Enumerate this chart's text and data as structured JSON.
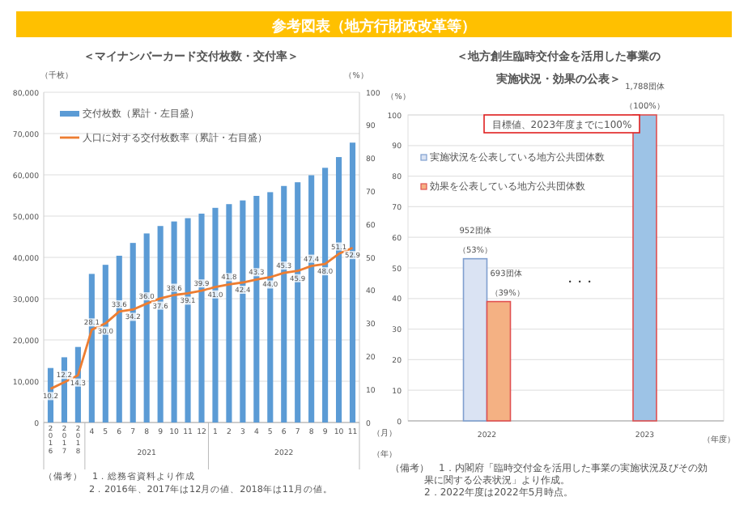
{
  "chart_data": [
    {
      "type": "bar",
      "title": "＜マイナンバーカード交付枚数・交付率＞",
      "xlabel": "（月）",
      "ylabel": "（千枚）",
      "y2label": "（%）",
      "categories": [
        "2016",
        "2017",
        "2018",
        "4",
        "5",
        "6",
        "7",
        "8",
        "9",
        "10",
        "11",
        "12",
        "1",
        "2",
        "3",
        "4",
        "5",
        "6",
        "7",
        "8",
        "9",
        "10",
        "11"
      ],
      "series": [
        {
          "name": "交付枚数（累計・左目盛）",
          "color": "#5b9bd5",
          "values": [
            13200,
            15800,
            18300,
            36000,
            38200,
            40400,
            43500,
            45800,
            47600,
            48700,
            49500,
            50600,
            52000,
            52900,
            53800,
            54900,
            55800,
            57300,
            58200,
            59900,
            61700,
            64300,
            67800
          ]
        },
        {
          "name": "人口に対する交付枚数率（累計・右目盛）",
          "type": "line",
          "axis": "y2",
          "color": "#ed7d31",
          "values": [
            10.2,
            12.2,
            14.3,
            28.1,
            30.0,
            33.6,
            34.2,
            36.0,
            37.6,
            38.6,
            39.1,
            39.9,
            41.0,
            41.8,
            42.4,
            43.3,
            44.0,
            45.3,
            45.9,
            47.4,
            48.0,
            51.1,
            52.9
          ],
          "value_labels": [
            "10.2",
            "12.2",
            "14.3",
            "28.1",
            "30.0",
            "33.6",
            "34.2",
            "36.0",
            "37.6",
            "38.6",
            "39.1",
            "39.9",
            "41.0",
            "41.8",
            "42.4",
            "43.3",
            "44.0",
            "45.3",
            "45.9",
            "47.4",
            "48.0",
            "51.1",
            "52.9"
          ]
        }
      ],
      "ylim": [
        0,
        80000
      ],
      "yticks": [
        0,
        {
          "value": 10000,
          "label": "10,000"
        },
        {
          "value": 20000,
          "label": "20,000"
        },
        {
          "value": 30000,
          "label": "30,000"
        },
        {
          "value": 40000,
          "label": "40,000"
        },
        {
          "value": 50000,
          "label": "50,000"
        },
        {
          "value": 60000,
          "label": "60,000"
        },
        {
          "value": 70000,
          "label": "70,000"
        },
        {
          "value": 80000,
          "label": "80,000"
        }
      ],
      "y2lim": [
        0,
        100
      ],
      "y2ticks": [
        0,
        10,
        20,
        30,
        40,
        50,
        60,
        70,
        80,
        90,
        100
      ],
      "grid": "y",
      "legend": "top left",
      "annotations": [
        "参考図表（地方行財政改革等）",
        "2021",
        "2022",
        "（年）",
        "（備考）　1．総務省資料より作成",
        "2．2016年、2017年は12月の値、2018年は11月の値。"
      ]
    },
    {
      "type": "bar",
      "title": "＜地方創生臨時交付金を活用した事業の実施状況・効果の公表＞",
      "xlabel": "（年度）",
      "ylabel": "（%）",
      "categories": [
        "2022",
        "2023"
      ],
      "series": [
        {
          "name": "実施状況を公表している地方公共団体数",
          "color": "#dae3f3",
          "values": [
            53,
            null
          ],
          "value_labels": [
            "952団体（53%）",
            null
          ]
        },
        {
          "name": "効果を公表している地方公共団体数",
          "color": "#f4b183",
          "values": [
            39,
            null
          ],
          "value_labels": [
            "693団体（39%）",
            null
          ]
        },
        {
          "color": "#9dc3e6",
          "values": [
            null,
            100
          ],
          "value_labels": [
            null,
            "1,788団体（100%）"
          ]
        }
      ],
      "ylim": [
        0,
        100
      ],
      "yticks": [
        0,
        10,
        20,
        30,
        40,
        50,
        60,
        70,
        80,
        90,
        100
      ],
      "grid": "y",
      "legend": "top left",
      "annotations": [
        "目標値、2023年度までに100%",
        "・・・",
        "（備考）　1．内閣府「臨時交付金を活用した事業の実施状況及びその効果に関する公表状況」より作成。",
        "2．2022年度は2022年5月時点。"
      ]
    }
  ]
}
